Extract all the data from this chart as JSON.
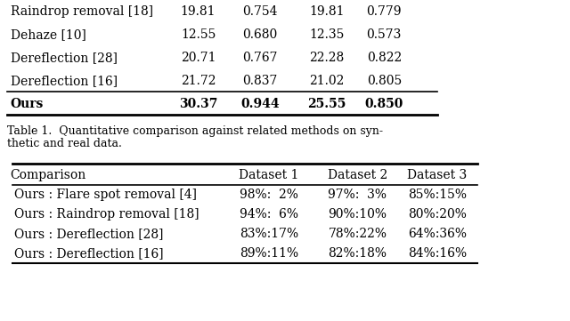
{
  "caption": "Table 1.  Quantitative comparison against related methods on synthetic and real data.",
  "table2_title": [
    "Comparison",
    "Dataset 1",
    "Dataset 2",
    "Dataset 3"
  ],
  "table2_rows": [
    [
      "Ours : Flare spot removal [4]",
      "98%:  2%",
      "97%:  3%",
      "85%:15%"
    ],
    [
      "Ours : Raindrop removal [18]",
      "94%:  6%",
      "90%:10%",
      "80%:20%"
    ],
    [
      "Ours : Dereflection [28]",
      "83%:17%",
      "78%:22%",
      "64%:36%"
    ],
    [
      "Ours : Dereflection [16]",
      "89%:11%",
      "82%:18%",
      "84%:16%"
    ]
  ],
  "partial_rows": [
    [
      "Raindrop removal [18]",
      "19.81",
      "0.754",
      "19.81",
      "0.779"
    ],
    [
      "Dehaze [10]",
      "12.55",
      "0.680",
      "12.35",
      "0.573"
    ],
    [
      "Dereflection [28]",
      "20.71",
      "0.767",
      "22.28",
      "0.822"
    ],
    [
      "Dereflection [16]",
      "21.72",
      "0.837",
      "21.02",
      "0.805"
    ],
    [
      "Ours",
      "30.37",
      "0.944",
      "25.55",
      "0.850"
    ]
  ],
  "bold_row": 4,
  "bg_color": "#ffffff",
  "text_color": "#000000",
  "line_color": "#000000",
  "fontsize": 10,
  "caption_fontsize": 9
}
